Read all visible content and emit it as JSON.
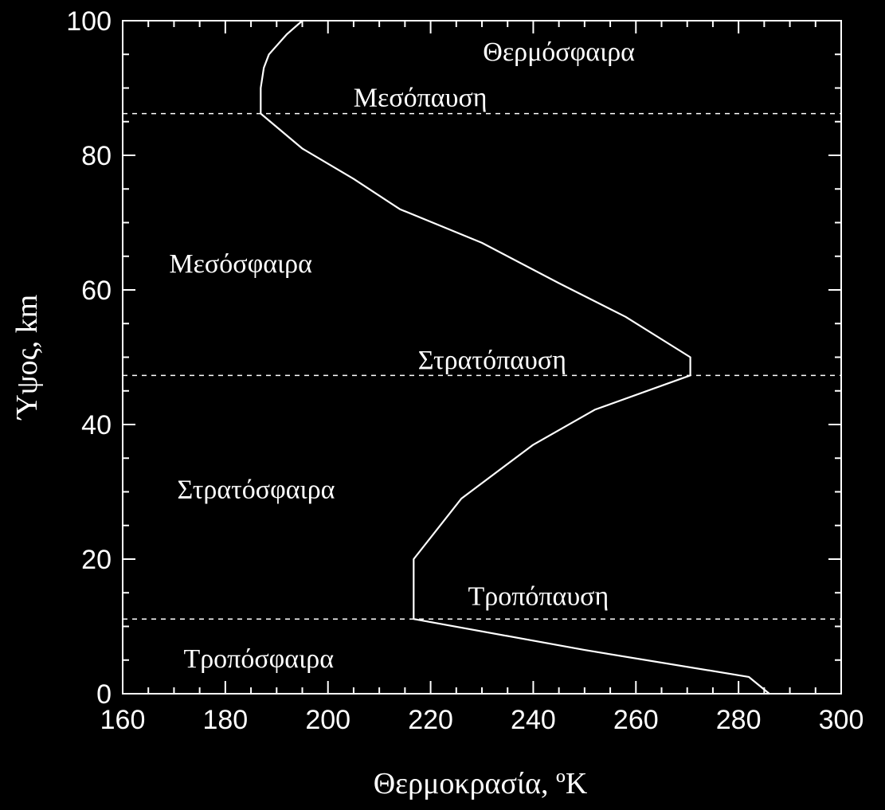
{
  "chart_data": {
    "type": "line",
    "xlabel": "Θερμοκρασία, ºK",
    "ylabel": "Ύψος,  km",
    "xlim": [
      160,
      300
    ],
    "ylim": [
      0,
      100
    ],
    "x_ticks": [
      "160",
      "180",
      "200",
      "220",
      "240",
      "260",
      "280",
      "300"
    ],
    "y_ticks": [
      "0",
      "20",
      "40",
      "60",
      "80",
      "100"
    ],
    "background": "#000000",
    "foreground": "#ffffff",
    "series": [
      {
        "x": [
          286,
          282,
          250,
          216.7,
          216.7,
          226,
          240,
          252,
          270.6,
          270.6,
          258,
          245,
          230,
          214,
          205,
          195,
          186.9,
          186.9,
          187.5,
          188.5,
          192,
          195
        ],
        "y": [
          0,
          2.5,
          6.5,
          11.1,
          20,
          29,
          37,
          42.2,
          47.3,
          50,
          56,
          61,
          67,
          72,
          76.5,
          81,
          86.2,
          90,
          93,
          95,
          98,
          100
        ]
      }
    ],
    "boundaries": [
      {
        "name": "Τροπόπαυση",
        "y": 11.1
      },
      {
        "name": "Στρατόπαυση",
        "y": 47.3
      },
      {
        "name": "Μεσόπαυση",
        "y": 86.2
      }
    ],
    "regions": [
      {
        "label": "Θερμόσφαιρα",
        "x": 245,
        "y": 95.5
      },
      {
        "label": "Μεσόπαυση",
        "x": 218,
        "y": 88.7
      },
      {
        "label": "Μεσόσφαιρα",
        "x": 183,
        "y": 64
      },
      {
        "label": "Στρατόπαυση",
        "x": 232,
        "y": 49.7
      },
      {
        "label": "Στρατόσφαιρα",
        "x": 186,
        "y": 30.5
      },
      {
        "label": "Τροπόπαυση",
        "x": 241,
        "y": 14.6
      },
      {
        "label": "Τροπόσφαιρα",
        "x": 186.5,
        "y": 5.3
      }
    ]
  }
}
